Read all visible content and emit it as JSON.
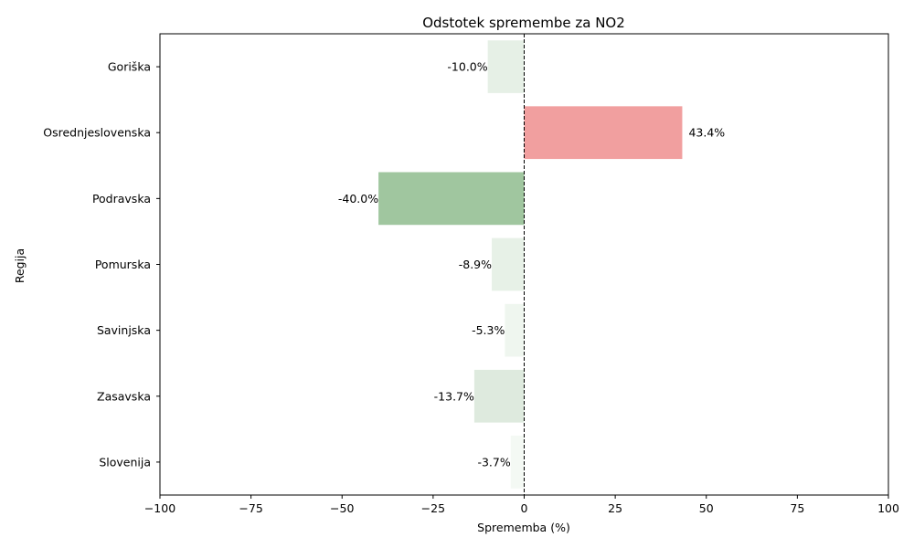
{
  "chart_data": {
    "type": "bar",
    "orientation": "horizontal",
    "title": "Odstotek spremembe za NO2",
    "xlabel": "Sprememba (%)",
    "ylabel": "Regija",
    "xlim": [
      -100,
      100
    ],
    "xticks": [
      -100,
      -75,
      -50,
      -25,
      0,
      25,
      50,
      75,
      100
    ],
    "xtick_labels": [
      "−100",
      "−75",
      "−50",
      "−25",
      "0",
      "25",
      "50",
      "75",
      "100"
    ],
    "reference_line": 0,
    "grid": false,
    "categories": [
      "Goriška",
      "Osrednjeslovenska",
      "Podravska",
      "Pomurska",
      "Savinjska",
      "Zasavska",
      "Slovenija"
    ],
    "values": [
      -10.0,
      43.4,
      -40.0,
      -8.9,
      -5.3,
      -13.7,
      -3.7
    ],
    "data_labels": [
      "-10.0%",
      "43.4%",
      "-40.0%",
      "-8.9%",
      "-5.3%",
      "-13.7%",
      "-3.7%"
    ],
    "colors": [
      "#e6f0e6",
      "#f19f9f",
      "#a0c69f",
      "#e7f1e7",
      "#eff6ef",
      "#deeade",
      "#f4f9f4"
    ]
  }
}
